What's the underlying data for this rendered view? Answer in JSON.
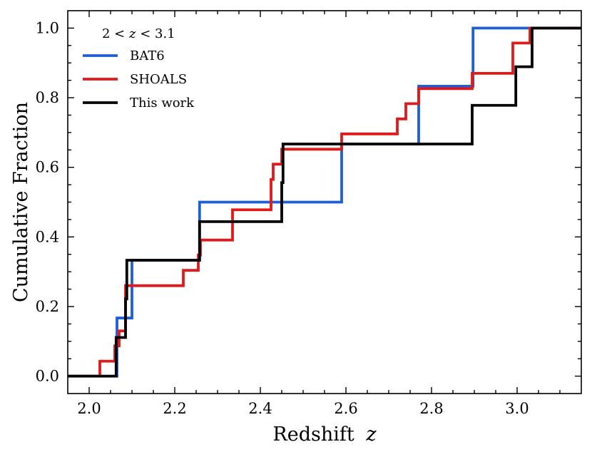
{
  "chart_data": {
    "type": "line",
    "step": "post",
    "title": "",
    "xlabel": "Redshift",
    "xlabel_var": "z",
    "ylabel": "Cumulative Fraction",
    "xlim": [
      1.95,
      3.15
    ],
    "ylim": [
      -0.05,
      1.05
    ],
    "xticks": [
      2.0,
      2.2,
      2.4,
      2.6,
      2.8,
      3.0
    ],
    "xtick_labels": [
      "2.0",
      "2.2",
      "2.4",
      "2.6",
      "2.8",
      "3.0"
    ],
    "yticks": [
      0.0,
      0.2,
      0.4,
      0.6,
      0.8,
      1.0
    ],
    "ytick_labels": [
      "0.0",
      "0.2",
      "0.4",
      "0.6",
      "0.8",
      "1.0"
    ],
    "grid": false,
    "legend": {
      "title_parts": [
        "2 < ",
        "z",
        " < 3.1"
      ],
      "placement": "top-left"
    },
    "series": [
      {
        "name": "BAT6",
        "color": "#1f5fd6",
        "x": [
          1.95,
          2.065,
          2.1,
          2.258,
          2.59,
          2.77,
          2.897,
          3.15
        ],
        "y": [
          0.0,
          0.167,
          0.333,
          0.5,
          0.667,
          0.833,
          1.0,
          1.0
        ]
      },
      {
        "name": "SHOALS",
        "color": "#e01a1a",
        "x": [
          1.95,
          2.025,
          2.06,
          2.07,
          2.085,
          2.22,
          2.255,
          2.26,
          2.335,
          2.425,
          2.43,
          2.435,
          2.45,
          2.59,
          2.72,
          2.74,
          2.77,
          2.895,
          2.99,
          3.03,
          3.15
        ],
        "y": [
          0.0,
          0.043,
          0.087,
          0.13,
          0.26,
          0.304,
          0.348,
          0.391,
          0.478,
          0.565,
          0.609,
          0.609,
          0.652,
          0.696,
          0.739,
          0.783,
          0.826,
          0.87,
          0.957,
          1.0,
          1.0
        ]
      },
      {
        "name": "This work",
        "color": "#000000",
        "x": [
          1.95,
          2.063,
          2.085,
          2.088,
          2.258,
          2.45,
          2.453,
          2.895,
          2.997,
          3.035,
          3.15
        ],
        "y": [
          0.0,
          0.111,
          0.222,
          0.333,
          0.444,
          0.556,
          0.667,
          0.778,
          0.889,
          1.0,
          1.0
        ]
      }
    ]
  }
}
